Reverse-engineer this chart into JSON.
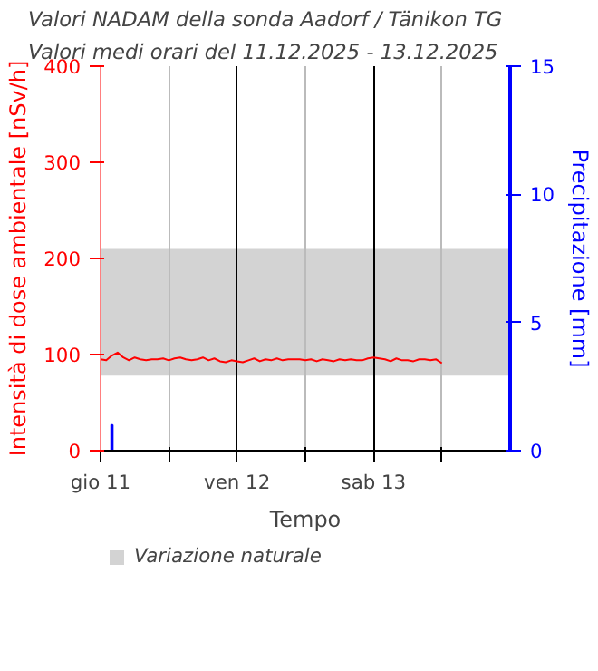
{
  "chart_data": {
    "type": "line",
    "title": "Valori NADAM della sonda Aadorf / Tänikon TG",
    "subtitle": "Valori medi orari del 11.12.2025 - 13.12.2025",
    "xlabel": "Tempo",
    "ylabel": "Intensità di dose ambientale [nSv/h]",
    "y2label": "Precipitazione [mm]",
    "xlim": [
      "2025-12-11T00:00",
      "2025-12-14T00:00"
    ],
    "xticks": [
      {
        "value": "2025-12-11T00:00",
        "label": "gio 11"
      },
      {
        "value": "2025-12-11T12:00",
        "label": null
      },
      {
        "value": "2025-12-12T00:00",
        "label": "ven 12"
      },
      {
        "value": "2025-12-12T12:00",
        "label": null
      },
      {
        "value": "2025-12-13T00:00",
        "label": "sab 13"
      },
      {
        "value": "2025-12-13T12:00",
        "label": null
      }
    ],
    "ylim": [
      0,
      400
    ],
    "yticks": [
      0,
      100,
      200,
      300,
      400
    ],
    "y2lim": [
      0,
      15
    ],
    "y2ticks": [
      0,
      5,
      10,
      15
    ],
    "series": [
      {
        "color": "#ff0000",
        "x": [
          "2025-12-11T00:00",
          "2025-12-11T01:00",
          "2025-12-11T02:00",
          "2025-12-11T03:00",
          "2025-12-11T04:00",
          "2025-12-11T05:00",
          "2025-12-11T06:00",
          "2025-12-11T07:00",
          "2025-12-11T08:00",
          "2025-12-11T09:00",
          "2025-12-11T10:00",
          "2025-12-11T11:00",
          "2025-12-11T12:00",
          "2025-12-11T13:00",
          "2025-12-11T14:00",
          "2025-12-11T15:00",
          "2025-12-11T16:00",
          "2025-12-11T17:00",
          "2025-12-11T18:00",
          "2025-12-11T19:00",
          "2025-12-11T20:00",
          "2025-12-11T21:00",
          "2025-12-11T22:00",
          "2025-12-11T23:00",
          "2025-12-12T00:00",
          "2025-12-12T01:00",
          "2025-12-12T02:00",
          "2025-12-12T03:00",
          "2025-12-12T04:00",
          "2025-12-12T05:00",
          "2025-12-12T06:00",
          "2025-12-12T07:00",
          "2025-12-12T08:00",
          "2025-12-12T09:00",
          "2025-12-12T10:00",
          "2025-12-12T11:00",
          "2025-12-12T12:00",
          "2025-12-12T13:00",
          "2025-12-12T14:00",
          "2025-12-12T15:00",
          "2025-12-12T16:00",
          "2025-12-12T17:00",
          "2025-12-12T18:00",
          "2025-12-12T19:00",
          "2025-12-12T20:00",
          "2025-12-12T21:00",
          "2025-12-12T22:00",
          "2025-12-12T23:00",
          "2025-12-13T00:00",
          "2025-12-13T01:00",
          "2025-12-13T02:00",
          "2025-12-13T03:00",
          "2025-12-13T04:00",
          "2025-12-13T05:00",
          "2025-12-13T06:00",
          "2025-12-13T07:00",
          "2025-12-13T08:00",
          "2025-12-13T09:00",
          "2025-12-13T10:00",
          "2025-12-13T11:00",
          "2025-12-13T12:00"
        ],
        "values": [
          95,
          94,
          99,
          102,
          97,
          94,
          97,
          95,
          94,
          95,
          95,
          96,
          94,
          96,
          97,
          95,
          94,
          95,
          97,
          94,
          96,
          93,
          92,
          94,
          93,
          92,
          94,
          96,
          93,
          95,
          94,
          96,
          94,
          95,
          95,
          95,
          94,
          95,
          93,
          95,
          94,
          93,
          95,
          94,
          95,
          94,
          94,
          96,
          97,
          96,
          95,
          93,
          96,
          94,
          94,
          93,
          95,
          95,
          94,
          95,
          91
        ]
      },
      {
        "type": "bar",
        "axis": "y2",
        "color": "#0000ff",
        "x": [
          "2025-12-11T02:00"
        ],
        "values": [
          1.0
        ]
      }
    ],
    "bands": [
      {
        "axis": "y",
        "from": 78,
        "to": 210,
        "label": "Variazione naturale",
        "color": "#d3d3d3"
      }
    ],
    "grid": "x",
    "legend": "bottom"
  }
}
